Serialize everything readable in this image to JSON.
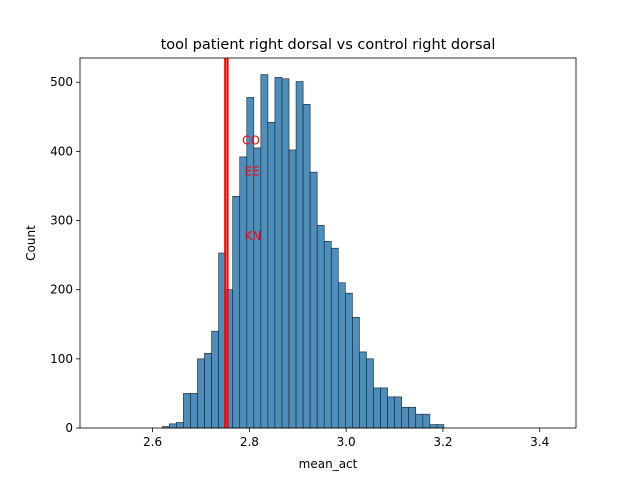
{
  "chart_data": {
    "type": "bar",
    "title": "tool patient right dorsal vs control right dorsal",
    "xlabel": "mean_act",
    "ylabel": "Count",
    "xlim": [
      2.45,
      3.475
    ],
    "ylim": [
      0,
      535
    ],
    "xticks": [
      2.6,
      2.8,
      3.0,
      3.2,
      3.4
    ],
    "yticks": [
      0,
      100,
      200,
      300,
      400,
      500
    ],
    "grid": false,
    "bar_color": "#4C8EBC",
    "bar_edge_color": "#1f1f1f",
    "bins": {
      "start": 2.46,
      "width": 0.01455,
      "counts": [
        0,
        0,
        0,
        0,
        0,
        0,
        0,
        0,
        0,
        0,
        0,
        2,
        6,
        8,
        50,
        50,
        100,
        108,
        140,
        253,
        200,
        335,
        392,
        478,
        405,
        511,
        442,
        507,
        505,
        402,
        501,
        468,
        370,
        293,
        270,
        260,
        210,
        195,
        160,
        110,
        100,
        58,
        58,
        45,
        45,
        30,
        30,
        20,
        20,
        5,
        5,
        0,
        0,
        0,
        0,
        0,
        0,
        0,
        0,
        0,
        0,
        0,
        0,
        0,
        0,
        0,
        0
      ]
    },
    "vlines": {
      "color": "#FF0000",
      "x": [
        2.75,
        2.755
      ]
    },
    "annotations": [
      {
        "text": "CO",
        "x": 2.785,
        "y": 410
      },
      {
        "text": "EE",
        "x": 2.79,
        "y": 365
      },
      {
        "text": "KN",
        "x": 2.79,
        "y": 272
      }
    ]
  }
}
